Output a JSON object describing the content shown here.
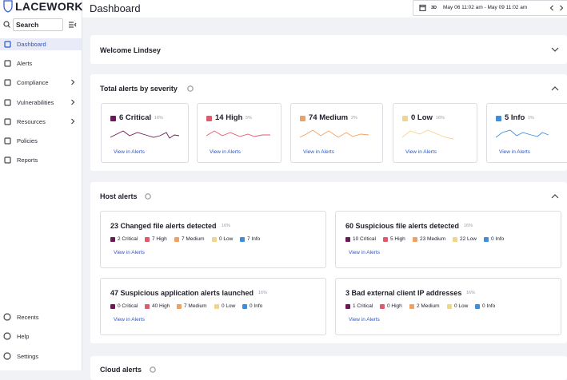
{
  "sidebar": {
    "brand": "LACEWORK",
    "search": "Search",
    "nav": [
      "Dashboard",
      "Alerts",
      "Compliance",
      "Vulnerabilities",
      "Resources",
      "Policies",
      "Reports"
    ],
    "footer": [
      "Recents",
      "Help",
      "Settings"
    ]
  },
  "header": {
    "title": "Dashboard",
    "range_badge": "3D",
    "date_range": "May 06 11:02 am - May 09 11:02 am"
  },
  "welcome": "Welcome Lindsey",
  "palette": [
    "#6b1a55",
    "#e05a6e",
    "#f0a060",
    "#f2d58a",
    "#3d8fd9"
  ],
  "severity": {
    "title": "Total alerts by severity",
    "cards": [
      {
        "label": "6 Critical",
        "change": "16%",
        "link": "View in Alerts"
      },
      {
        "label": "14 High",
        "change": "5%",
        "link": "View in Alerts"
      },
      {
        "label": "74 Medium",
        "change": "2%",
        "link": "View in Alerts"
      },
      {
        "label": "0 Low",
        "change": "16%",
        "link": "View in Alerts"
      },
      {
        "label": "5 Info",
        "change": "1%",
        "link": "View in Alerts"
      }
    ]
  },
  "host": {
    "title": "Host alerts",
    "cards": [
      {
        "title": "23 Changed file alerts detected",
        "change": "16%",
        "counts": [
          "2 Critical",
          "7 High",
          "7 Medium",
          "0 Low",
          "7 Info"
        ],
        "link": "View in Alerts"
      },
      {
        "title": "60 Suspicious file alerts detected",
        "change": "16%",
        "counts": [
          "10 Critical",
          "5 High",
          "23 Medium",
          "22 Low",
          "0 Info"
        ],
        "link": "View in Alerts"
      },
      {
        "title": "47 Suspicious application alerts launched",
        "change": "16%",
        "counts": [
          "0 Critical",
          "40 High",
          "7 Medium",
          "0 Low",
          "0 Info"
        ],
        "link": "View in Alerts"
      },
      {
        "title": "3 Bad external client IP addresses",
        "change": "16%",
        "counts": [
          "1 Critical",
          "0 High",
          "2 Medium",
          "0 Low",
          "0 Info"
        ],
        "link": "View in Alerts"
      }
    ]
  },
  "cloud": {
    "title": "Cloud alerts"
  }
}
